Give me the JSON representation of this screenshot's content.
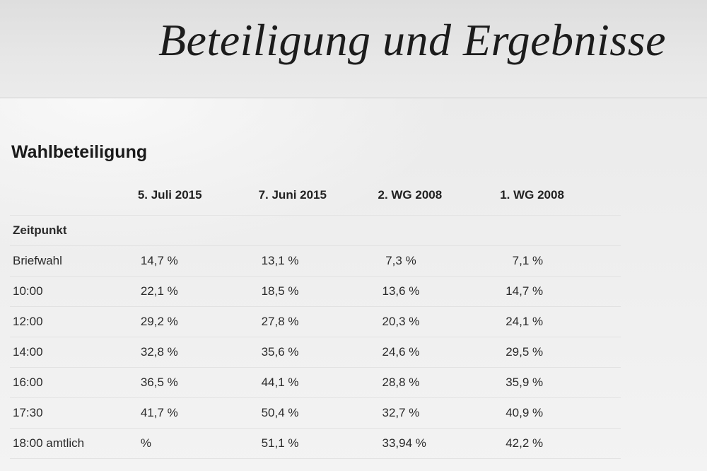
{
  "header": {
    "title": "Beteiligung und Ergebnisse"
  },
  "section": {
    "title": "Wahlbeteiligung"
  },
  "table": {
    "columns": [
      "5. Juli 2015",
      "7. Juni 2015",
      "2. WG 2008",
      "1. WG 2008"
    ],
    "subheader": "Zeitpunkt",
    "rows": [
      {
        "label": "Briefwahl",
        "values": [
          "14,7 %",
          "13,1 %",
          " 7,3 %",
          "  7,1 %"
        ]
      },
      {
        "label": "10:00",
        "values": [
          "22,1 %",
          "18,5 %",
          "13,6 %",
          "14,7 %"
        ]
      },
      {
        "label": "12:00",
        "values": [
          "29,2 %",
          "27,8 %",
          "20,3 %",
          "24,1 %"
        ]
      },
      {
        "label": "14:00",
        "values": [
          "32,8 %",
          "35,6 %",
          "24,6 %",
          "29,5 %"
        ]
      },
      {
        "label": "16:00",
        "values": [
          "36,5 %",
          "44,1 %",
          "28,8 %",
          "35,9 %"
        ]
      },
      {
        "label": "17:30",
        "values": [
          "41,7 %",
          "50,4 %",
          "32,7 %",
          "40,9 %"
        ]
      },
      {
        "label": "18:00 amtlich",
        "values": [
          "%",
          "51,1 %",
          "33,94 %",
          "42,2 %"
        ]
      }
    ]
  }
}
